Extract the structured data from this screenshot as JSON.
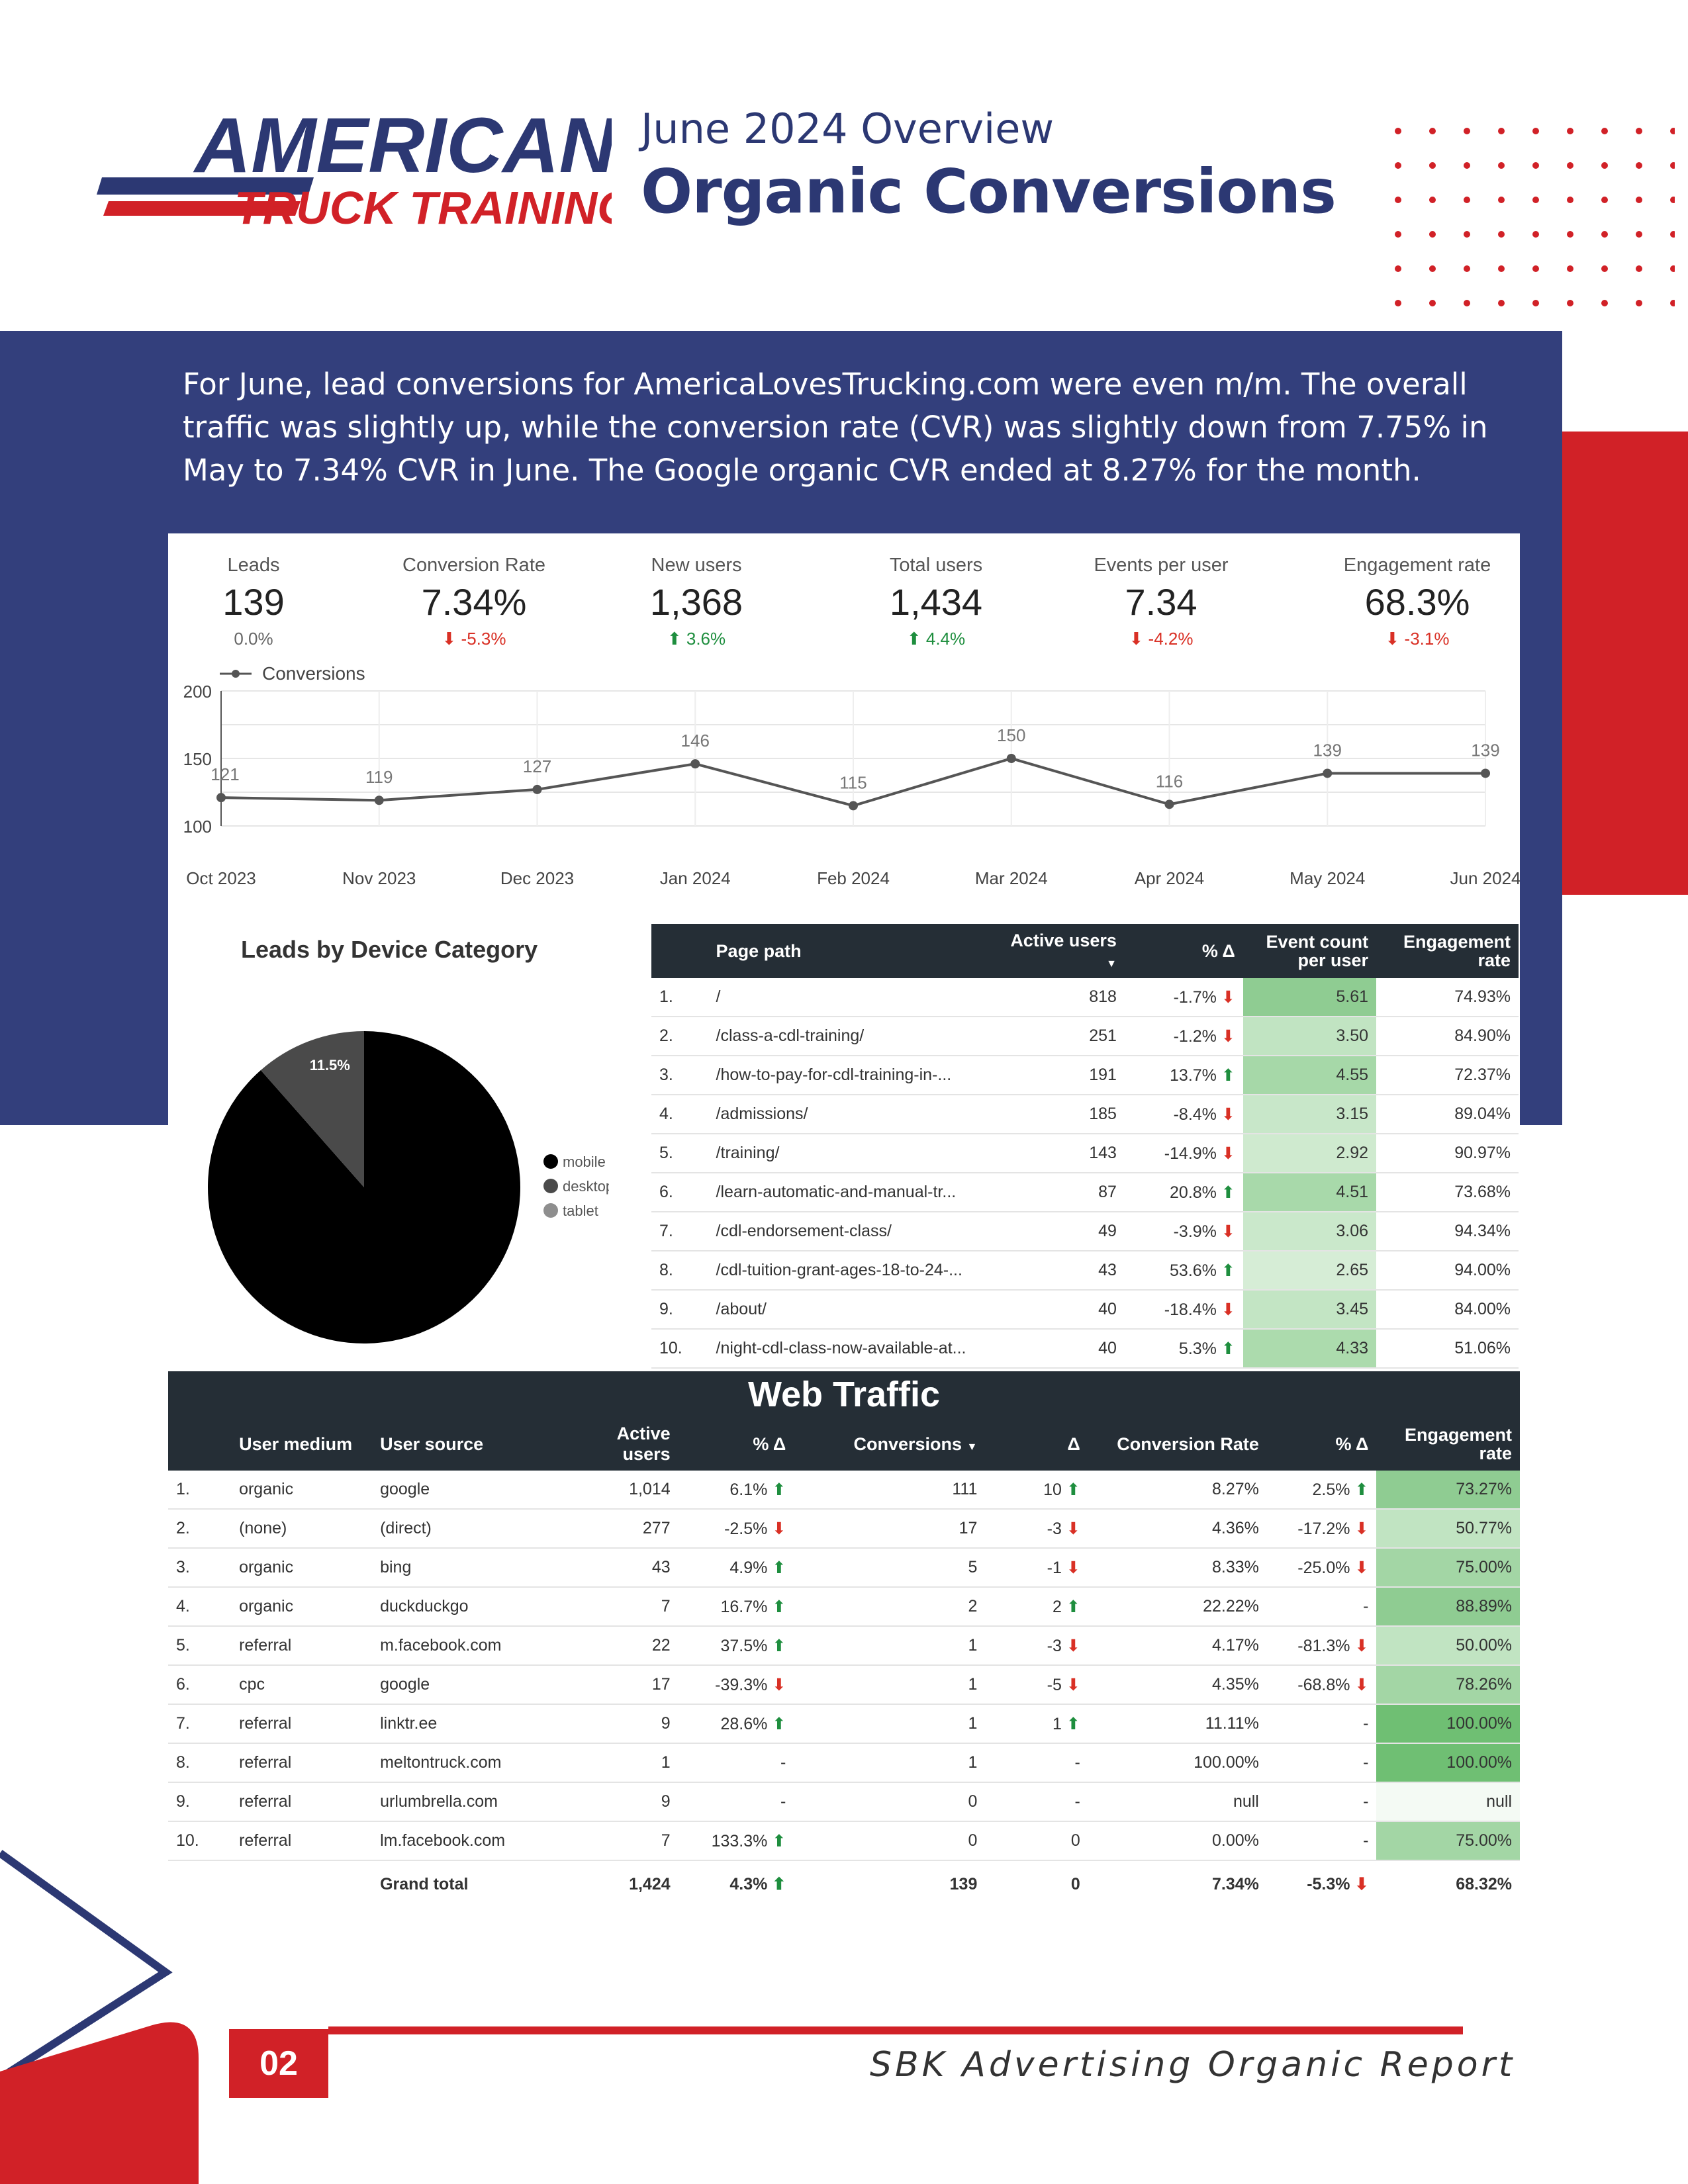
{
  "brand": {
    "logo_line1": "AMERICAN",
    "logo_line2": "TRUCK TRAINING"
  },
  "header": {
    "subtitle": "June 2024 Overview",
    "title": "Organic Conversions"
  },
  "intro": "For June, lead conversions for AmericaLovesTrucking.com were even m/m. The overall traffic was slightly up, while the conversion rate (CVR) was slightly down from 7.75% in May to 7.34% CVR in June. The Google organic CVR ended at 8.27% for the month.",
  "kpis": [
    {
      "label": "Leads",
      "value": "139",
      "delta": "0.0%",
      "dir": "neutral"
    },
    {
      "label": "Conversion Rate",
      "value": "7.34%",
      "delta": "-5.3%",
      "dir": "down"
    },
    {
      "label": "New users",
      "value": "1,368",
      "delta": "3.6%",
      "dir": "up"
    },
    {
      "label": "Total users",
      "value": "1,434",
      "delta": "4.4%",
      "dir": "up"
    },
    {
      "label": "Events per user",
      "value": "7.34",
      "delta": "-4.2%",
      "dir": "down"
    },
    {
      "label": "Engagement rate",
      "value": "68.3%",
      "delta": "-3.1%",
      "dir": "down"
    }
  ],
  "chart_data": [
    {
      "type": "line",
      "title": "",
      "legend": "Conversions",
      "series": [
        {
          "name": "Conversions",
          "values": [
            121,
            119,
            127,
            146,
            115,
            150,
            116,
            139,
            139
          ]
        }
      ],
      "categories": [
        "Oct 2023",
        "Nov 2023",
        "Dec 2023",
        "Jan 2024",
        "Feb 2024",
        "Mar 2024",
        "Apr 2024",
        "May 2024",
        "Jun 2024"
      ],
      "yticks": [
        "200",
        "150",
        "100"
      ],
      "ylim": [
        100,
        200
      ],
      "xlabel": "",
      "ylabel": ""
    },
    {
      "type": "pie",
      "title": "Leads by Device Category",
      "categories": [
        "mobile",
        "desktop",
        "tablet"
      ],
      "values": [
        88.5,
        11.5,
        0
      ],
      "labels": [
        "88.5%",
        "11.5%"
      ],
      "colors": [
        "#000000",
        "#4a4a4a",
        "#8e8e8e"
      ]
    }
  ],
  "pages_table": {
    "headers": [
      "Page path",
      "Active users",
      "% Δ",
      "Event count per user",
      "Engagement rate"
    ],
    "rows": [
      {
        "n": "1.",
        "path": "/",
        "users": "818",
        "delta": "-1.7%",
        "dir": "down",
        "events": "5.61",
        "eng": "74.93%",
        "shade": "#8fcc92"
      },
      {
        "n": "2.",
        "path": "/class-a-cdl-training/",
        "users": "251",
        "delta": "-1.2%",
        "dir": "down",
        "events": "3.50",
        "eng": "84.90%",
        "shade": "#c1e4c2"
      },
      {
        "n": "3.",
        "path": "/how-to-pay-for-cdl-training-in-...",
        "users": "191",
        "delta": "13.7%",
        "dir": "up",
        "events": "4.55",
        "eng": "72.37%",
        "shade": "#a6d8a8"
      },
      {
        "n": "4.",
        "path": "/admissions/",
        "users": "185",
        "delta": "-8.4%",
        "dir": "down",
        "events": "3.15",
        "eng": "89.04%",
        "shade": "#c8e7c9"
      },
      {
        "n": "5.",
        "path": "/training/",
        "users": "143",
        "delta": "-14.9%",
        "dir": "down",
        "events": "2.92",
        "eng": "90.97%",
        "shade": "#cfeacf"
      },
      {
        "n": "6.",
        "path": "/learn-automatic-and-manual-tr...",
        "users": "87",
        "delta": "20.8%",
        "dir": "up",
        "events": "4.51",
        "eng": "73.68%",
        "shade": "#a8d9aa"
      },
      {
        "n": "7.",
        "path": "/cdl-endorsement-class/",
        "users": "49",
        "delta": "-3.9%",
        "dir": "down",
        "events": "3.06",
        "eng": "94.34%",
        "shade": "#cae8cb"
      },
      {
        "n": "8.",
        "path": "/cdl-tuition-grant-ages-18-to-24-...",
        "users": "43",
        "delta": "53.6%",
        "dir": "up",
        "events": "2.65",
        "eng": "94.00%",
        "shade": "#d6edd6"
      },
      {
        "n": "9.",
        "path": "/about/",
        "users": "40",
        "delta": "-18.4%",
        "dir": "down",
        "events": "3.45",
        "eng": "84.00%",
        "shade": "#c3e5c4"
      },
      {
        "n": "10.",
        "path": "/night-cdl-class-now-available-at...",
        "users": "40",
        "delta": "5.3%",
        "dir": "up",
        "events": "4.33",
        "eng": "51.06%",
        "shade": "#acdbad"
      }
    ]
  },
  "traffic": {
    "title": "Web Traffic",
    "headers": [
      "User medium",
      "User source",
      "Active users",
      "% Δ",
      "Conversions",
      "Δ",
      "Conversion Rate",
      "% Δ",
      "Engagement rate"
    ],
    "rows": [
      {
        "n": "1.",
        "medium": "organic",
        "source": "google",
        "users": "1,014",
        "ud": "6.1%",
        "udir": "up",
        "conv": "111",
        "cd": "10",
        "cdir": "up",
        "rate": "8.27%",
        "rd": "2.5%",
        "rdir": "up",
        "eng": "73.27%",
        "shade": "#8fcc92"
      },
      {
        "n": "2.",
        "medium": "(none)",
        "source": "(direct)",
        "users": "277",
        "ud": "-2.5%",
        "udir": "down",
        "conv": "17",
        "cd": "-3",
        "cdir": "down",
        "rate": "4.36%",
        "rd": "-17.2%",
        "rdir": "down",
        "eng": "50.77%",
        "shade": "#c1e4c2"
      },
      {
        "n": "3.",
        "medium": "organic",
        "source": "bing",
        "users": "43",
        "ud": "4.9%",
        "udir": "up",
        "conv": "5",
        "cd": "-1",
        "cdir": "down",
        "rate": "8.33%",
        "rd": "-25.0%",
        "rdir": "down",
        "eng": "75.00%",
        "shade": "#a3d6a5"
      },
      {
        "n": "4.",
        "medium": "organic",
        "source": "duckduckgo",
        "users": "7",
        "ud": "16.7%",
        "udir": "up",
        "conv": "2",
        "cd": "2",
        "cdir": "up",
        "rate": "22.22%",
        "rd": "-",
        "rdir": "none",
        "eng": "88.89%",
        "shade": "#8fcc92"
      },
      {
        "n": "5.",
        "medium": "referral",
        "source": "m.facebook.com",
        "users": "22",
        "ud": "37.5%",
        "udir": "up",
        "conv": "1",
        "cd": "-3",
        "cdir": "down",
        "rate": "4.17%",
        "rd": "-81.3%",
        "rdir": "down",
        "eng": "50.00%",
        "shade": "#c1e4c2"
      },
      {
        "n": "6.",
        "medium": "cpc",
        "source": "google",
        "users": "17",
        "ud": "-39.3%",
        "udir": "down",
        "conv": "1",
        "cd": "-5",
        "cdir": "down",
        "rate": "4.35%",
        "rd": "-68.8%",
        "rdir": "down",
        "eng": "78.26%",
        "shade": "#a3d6a5"
      },
      {
        "n": "7.",
        "medium": "referral",
        "source": "linktr.ee",
        "users": "9",
        "ud": "28.6%",
        "udir": "up",
        "conv": "1",
        "cd": "1",
        "cdir": "up",
        "rate": "11.11%",
        "rd": "-",
        "rdir": "none",
        "eng": "100.00%",
        "shade": "#6fbf73"
      },
      {
        "n": "8.",
        "medium": "referral",
        "source": "meltontruck.com",
        "users": "1",
        "ud": "-",
        "udir": "none",
        "conv": "1",
        "cd": "-",
        "cdir": "none",
        "rate": "100.00%",
        "rd": "-",
        "rdir": "none",
        "eng": "100.00%",
        "shade": "#6fbf73"
      },
      {
        "n": "9.",
        "medium": "referral",
        "source": "urlumbrella.com",
        "users": "9",
        "ud": "-",
        "udir": "none",
        "conv": "0",
        "cd": "-",
        "cdir": "none",
        "rate": "null",
        "rd": "-",
        "rdir": "none",
        "eng": "null",
        "shade": "#f4faf4"
      },
      {
        "n": "10.",
        "medium": "referral",
        "source": "lm.facebook.com",
        "users": "7",
        "ud": "133.3%",
        "udir": "up",
        "conv": "0",
        "cd": "0",
        "cdir": "none",
        "rate": "0.00%",
        "rd": "-",
        "rdir": "none",
        "eng": "75.00%",
        "shade": "#a3d6a5"
      }
    ],
    "total": {
      "label": "Grand total",
      "users": "1,424",
      "ud": "4.3%",
      "udir": "up",
      "conv": "139",
      "cd": "0",
      "rate": "7.34%",
      "rd": "-5.3%",
      "rdir": "down",
      "eng": "68.32%"
    }
  },
  "footer": {
    "page": "02",
    "text": "SBK Advertising Organic Report"
  },
  "colors": {
    "navy": "#333f7c",
    "red": "#d12127",
    "dark": "#252e36"
  }
}
